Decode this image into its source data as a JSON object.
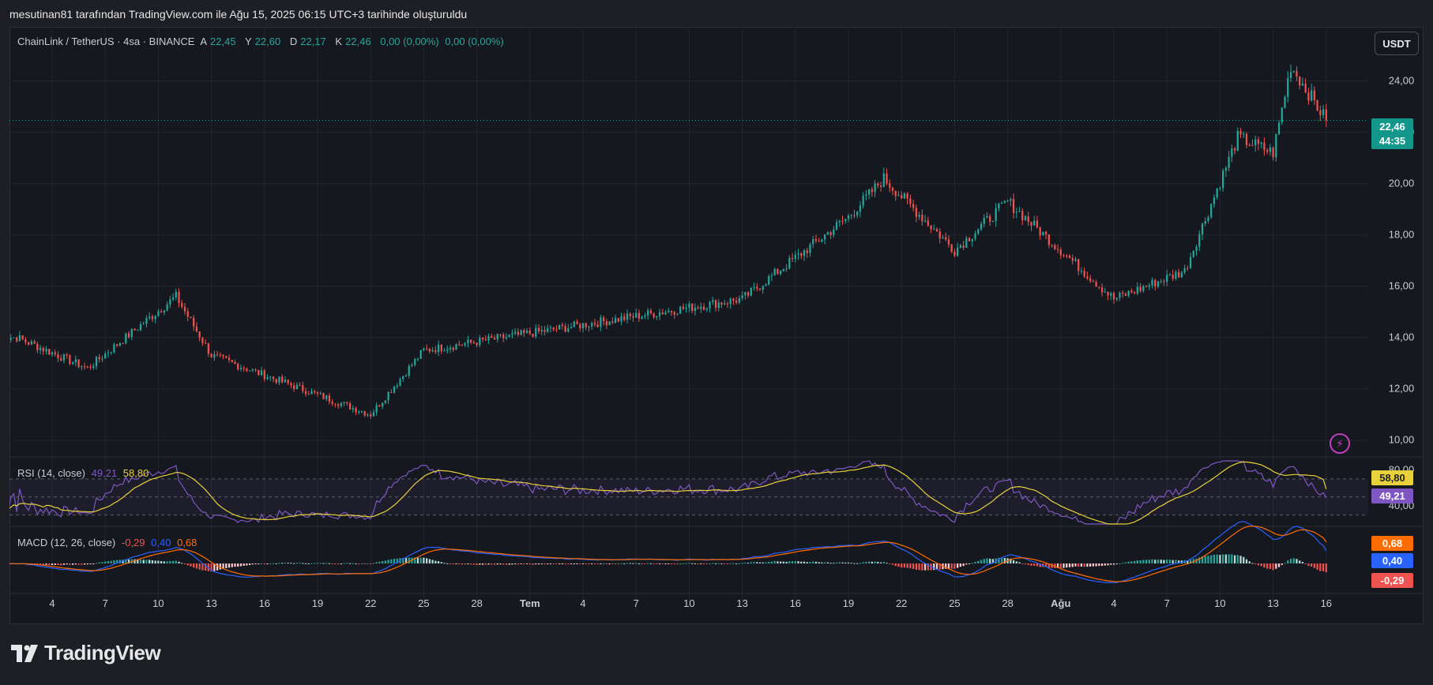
{
  "header": {
    "caption": "mesutinan81 tarafından TradingView.com ile Ağu 15, 2025 06:15 UTC+3 tarihinde oluşturuldu"
  },
  "colors": {
    "up": "#26a69a",
    "down": "#ef5350",
    "rsi": "#7e57c2",
    "rsi_ma": "#e8d13a",
    "macd": "#2962ff",
    "signal": "#ff6d00"
  },
  "chart_data": [
    {
      "type": "candlestick",
      "symbol": "ChainLink / TetherUS",
      "interval": "4sa",
      "exchange": "BINANCE",
      "legend": {
        "title": "ChainLink / TetherUS · 4sa · BINANCE",
        "open_label": "A",
        "open": "22,45",
        "high_label": "Y",
        "high": "22,60",
        "low_label": "D",
        "low": "22,17",
        "close_label": "K",
        "close": "22,46",
        "change": "0,00 (0,00%)",
        "change2": "0,00 (0,00%)"
      },
      "currency": "USDT",
      "last_price": "22,46",
      "countdown": "44:35",
      "ylim": [
        9.5,
        25.8
      ],
      "yticks": [
        "24,00",
        "22,00",
        "20,00",
        "18,00",
        "16,00",
        "14,00",
        "12,00",
        "10,00"
      ],
      "xticks": [
        "4",
        "7",
        "10",
        "13",
        "16",
        "19",
        "22",
        "25",
        "28",
        "Tem",
        "4",
        "7",
        "10",
        "13",
        "16",
        "19",
        "22",
        "25",
        "28",
        "Ağu",
        "4",
        "7",
        "10",
        "13",
        "16"
      ],
      "key_points": [
        {
          "date": "Haz 2",
          "close": 14.0
        },
        {
          "date": "Haz 6",
          "low": 12.8
        },
        {
          "date": "Haz 11",
          "high": 15.6
        },
        {
          "date": "Haz 13",
          "close": 13.3
        },
        {
          "date": "Haz 22",
          "low": 11.0
        },
        {
          "date": "Haz 25",
          "close": 13.5
        },
        {
          "date": "Tem 13",
          "close": 15.5
        },
        {
          "date": "Tem 19",
          "close": 18.7
        },
        {
          "date": "Tem 21",
          "high": 20.2
        },
        {
          "date": "Tem 25",
          "close": 17.4
        },
        {
          "date": "Tem 28",
          "close": 19.3
        },
        {
          "date": "Ağu 3",
          "low": 15.5
        },
        {
          "date": "Ağu 7",
          "close": 16.6
        },
        {
          "date": "Ağu 10",
          "close": 21.8
        },
        {
          "date": "Ağu 12",
          "close": 21.2
        },
        {
          "date": "Ağu 13",
          "high": 24.6
        },
        {
          "date": "Ağu 15",
          "close": 22.46
        }
      ]
    },
    {
      "type": "line",
      "name": "RSI",
      "legend": {
        "title": "RSI (14, close)",
        "rsi": "49,21",
        "rsi_ma": "58,80"
      },
      "ylim": [
        20,
        90
      ],
      "yticks": [
        "80,00",
        "40,00"
      ],
      "bands": [
        70,
        50,
        30
      ],
      "series": [
        {
          "name": "RSI",
          "last": 49.21
        },
        {
          "name": "RSI MA",
          "last": 58.8
        }
      ],
      "tags": [
        "58,80",
        "49,21"
      ]
    },
    {
      "type": "bar+line",
      "name": "MACD",
      "legend": {
        "title": "MACD (12, 26, close)",
        "histogram": "-0,29",
        "macd": "0,40",
        "signal": "0,68"
      },
      "series": [
        {
          "name": "MACD",
          "last": 0.4
        },
        {
          "name": "Signal",
          "last": 0.68
        },
        {
          "name": "Histogram",
          "last": -0.29
        }
      ],
      "tags": [
        "0,68",
        "0,40",
        "-0,29"
      ]
    }
  ],
  "footer": {
    "brand": "TradingView"
  }
}
